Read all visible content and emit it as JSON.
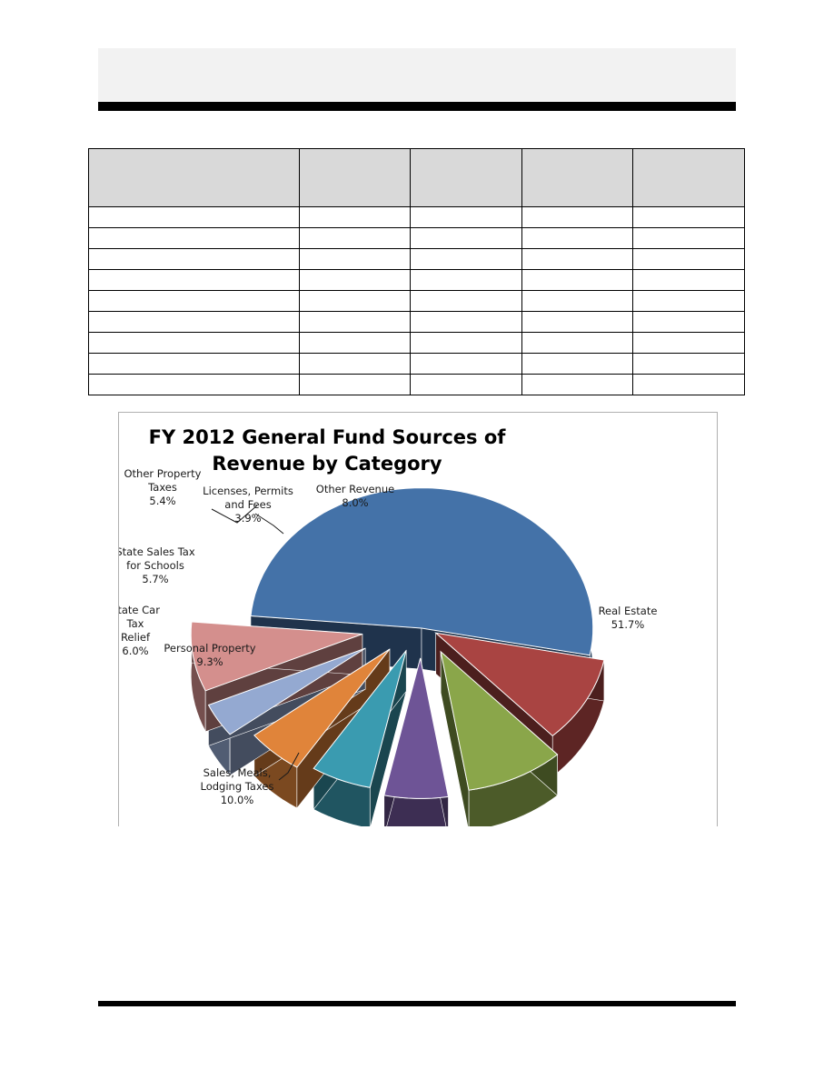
{
  "page": {
    "header_color": "#f2f2f2",
    "table_header_color": "#d9d9d9",
    "table_rows": 9,
    "table_cols": 5
  },
  "chart_data": {
    "type": "pie",
    "title": "FY 2012 General Fund Sources of Revenue by Category",
    "title_lines": [
      "FY 2012 General Fund Sources of",
      "Revenue by Category"
    ],
    "legend": "none",
    "style": "3d-exploded",
    "slices": [
      {
        "label": "Real Estate",
        "label_lines": [
          "Real Estate"
        ],
        "value": 51.7,
        "pct": "51.7%",
        "color": "#4472a8"
      },
      {
        "label": "Sales, Meals, Lodging Taxes",
        "label_lines": [
          "Sales, Meals,",
          "Lodging Taxes"
        ],
        "value": 10.0,
        "pct": "10.0%",
        "color": "#a94442"
      },
      {
        "label": "Personal Property",
        "label_lines": [
          "Personal Property"
        ],
        "value": 9.3,
        "pct": "9.3%",
        "color": "#8aa64a"
      },
      {
        "label": "State Car Tax Relief",
        "label_lines": [
          "State Car",
          "Tax",
          "Relief"
        ],
        "value": 6.0,
        "pct": "6.0%",
        "color": "#6e5496"
      },
      {
        "label": "State Sales Tax for Schools",
        "label_lines": [
          "State Sales Tax",
          "for Schools"
        ],
        "value": 5.7,
        "pct": "5.7%",
        "color": "#3a9bb0"
      },
      {
        "label": "Other Property Taxes",
        "label_lines": [
          "Other Property",
          "Taxes"
        ],
        "value": 5.4,
        "pct": "5.4%",
        "color": "#e0843a"
      },
      {
        "label": "Licenses, Permits and Fees",
        "label_lines": [
          "Licenses, Permits",
          "and Fees"
        ],
        "value": 3.9,
        "pct": "3.9%",
        "color": "#94a9d1"
      },
      {
        "label": "Other Revenue",
        "label_lines": [
          "Other Revenue"
        ],
        "value": 8.0,
        "pct": "8.0%",
        "color": "#d48f8d"
      }
    ]
  }
}
